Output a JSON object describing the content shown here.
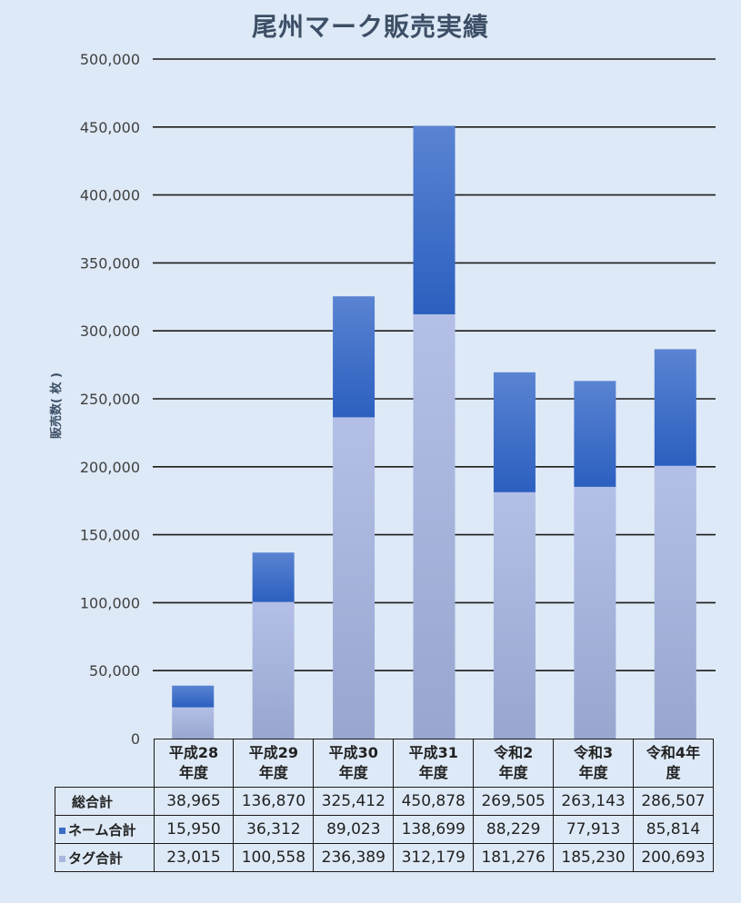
{
  "title": "尾州マーク販売実績",
  "ylabel": "販売数( 枚 )",
  "colors": {
    "name_series": "#3a6bc8",
    "tag_series": "#a9b7e0",
    "background": "#dde9f6"
  },
  "chart_data": {
    "type": "bar",
    "stacked": true,
    "title": "尾州マーク販売実績",
    "ylabel": "販売数( 枚 )",
    "ylim": [
      0,
      500000
    ],
    "yticks": [
      0,
      50000,
      100000,
      150000,
      200000,
      250000,
      300000,
      350000,
      400000,
      450000,
      500000
    ],
    "ytick_labels": [
      "0",
      "50,000",
      "100,000",
      "150,000",
      "200,000",
      "250,000",
      "300,000",
      "350,000",
      "400,000",
      "450,000",
      "500,000"
    ],
    "categories": [
      "平成28年度",
      "平成29年度",
      "平成30年度",
      "平成31年度",
      "令和2年度",
      "令和3年度",
      "令和4年度"
    ],
    "category_lines": [
      [
        "平成28",
        "年度"
      ],
      [
        "平成29",
        "年度"
      ],
      [
        "平成30",
        "年度"
      ],
      [
        "平成31",
        "年度"
      ],
      [
        "令和2",
        "年度"
      ],
      [
        "令和3",
        "年度"
      ],
      [
        "令和4年",
        "度"
      ]
    ],
    "grid": true,
    "legend": "data-table",
    "series": [
      {
        "name": "タグ合計",
        "values": [
          23015,
          100558,
          236389,
          312179,
          181276,
          185230,
          200693
        ]
      },
      {
        "name": "ネーム合計",
        "values": [
          15950,
          36312,
          89023,
          138699,
          88229,
          77913,
          85814
        ]
      }
    ],
    "table": {
      "rows": [
        {
          "label": "総合計",
          "cells": [
            "38,965",
            "136,870",
            "325,412",
            "450,878",
            "269,505",
            "263,143",
            "286,507"
          ]
        },
        {
          "label": "ネーム合計",
          "cells": [
            "15,950",
            "36,312",
            "89,023",
            "138,699",
            "88,229",
            "77,913",
            "85,814"
          ]
        },
        {
          "label": "タグ合計",
          "cells": [
            "23,015",
            "100,558",
            "236,389",
            "312,179",
            "181,276",
            "185,230",
            "200,693"
          ]
        }
      ]
    }
  }
}
